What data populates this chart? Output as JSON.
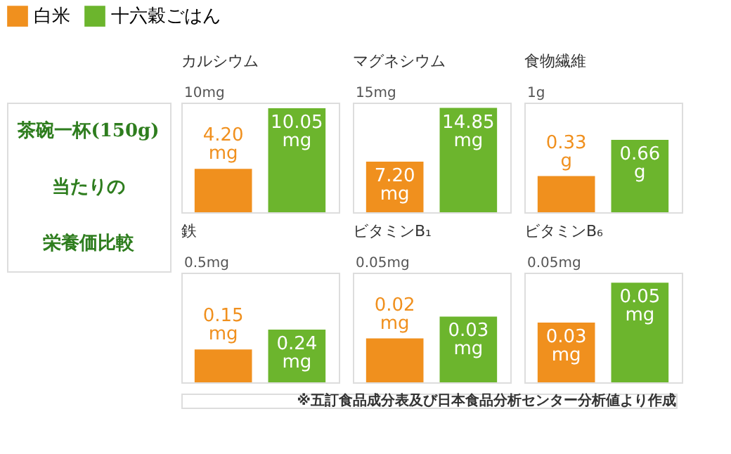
{
  "chart_data": [
    {
      "type": "bar",
      "title": "カルシウム",
      "categories": [
        null
      ],
      "legend": "top",
      "tick_labels": false,
      "ylim": [
        0,
        10.6
      ],
      "annotations": [
        "10mg",
        "茶碗一杯(150g)",
        "当たりの",
        "栄養価比較"
      ],
      "series": [
        {
          "name": "白米",
          "color": "#f0901e",
          "values": [
            4.2
          ],
          "value_labels": [
            "4.20 mg"
          ]
        },
        {
          "name": "十六穀ごはん",
          "color": "#6cb52d",
          "values": [
            10.05
          ],
          "value_labels": [
            "10.05 mg"
          ]
        }
      ]
    },
    {
      "type": "bar",
      "title": "マグネシウム",
      "categories": [
        null
      ],
      "tick_labels": false,
      "ylim": [
        0,
        15.6
      ],
      "annotations": [
        "15mg"
      ],
      "series": [
        {
          "color": "#f0901e",
          "values": [
            7.2
          ],
          "value_labels": [
            "7.20 mg"
          ]
        },
        {
          "color": "#6cb52d",
          "values": [
            14.85
          ],
          "value_labels": [
            "14.85 mg"
          ]
        }
      ]
    },
    {
      "type": "bar",
      "title": "食物繊維",
      "categories": [
        null
      ],
      "tick_labels": false,
      "ylim": [
        0,
        1
      ],
      "annotations": [
        "1g"
      ],
      "series": [
        {
          "color": "#f0901e",
          "values": [
            0.33
          ],
          "value_labels": [
            "0.33 g"
          ]
        },
        {
          "color": "#6cb52d",
          "values": [
            0.66
          ],
          "value_labels": [
            "0.66 g"
          ]
        }
      ]
    },
    {
      "type": "bar",
      "title": "鉄",
      "categories": [
        null
      ],
      "tick_labels": false,
      "ylim": [
        0,
        0.5
      ],
      "annotations": [
        "0.5mg"
      ],
      "series": [
        {
          "color": "#f0901e",
          "values": [
            0.15
          ],
          "value_labels": [
            "0.15 mg"
          ]
        },
        {
          "color": "#6cb52d",
          "values": [
            0.24
          ],
          "value_labels": [
            "0.24 mg"
          ]
        }
      ]
    },
    {
      "type": "bar",
      "title": "ビタミンB₁",
      "categories": [
        null
      ],
      "tick_labels": false,
      "ylim": [
        0,
        0.05
      ],
      "annotations": [
        "0.05mg"
      ],
      "series": [
        {
          "color": "#f0901e",
          "values": [
            0.02
          ],
          "value_labels": [
            "0.02 mg"
          ]
        },
        {
          "color": "#6cb52d",
          "values": [
            0.03
          ],
          "value_labels": [
            "0.03 mg"
          ]
        }
      ]
    },
    {
      "type": "bar",
      "title": "ビタミンB₆",
      "categories": [
        null
      ],
      "tick_labels": false,
      "ylim": [
        0,
        0.055
      ],
      "annotations": [
        "0.05mg",
        "※五訂食品成分表及び日本食品分析センター分析値より作成"
      ],
      "series": [
        {
          "color": "#f0901e",
          "values": [
            0.03
          ],
          "value_labels": [
            "0.03 mg"
          ]
        },
        {
          "color": "#6cb52d",
          "values": [
            0.05
          ],
          "value_labels": [
            "0.05 mg"
          ]
        }
      ]
    }
  ]
}
